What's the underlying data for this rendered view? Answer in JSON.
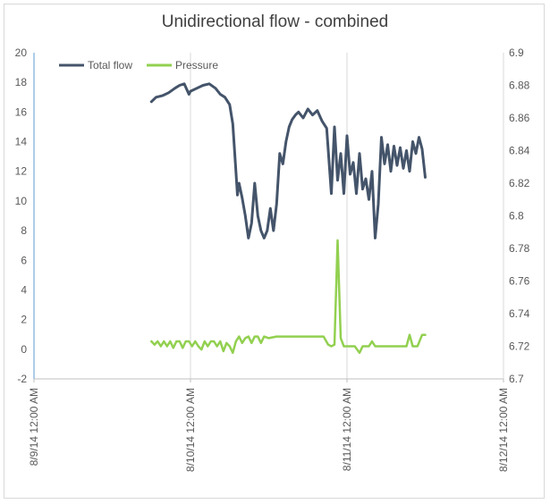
{
  "chart_data": {
    "type": "line",
    "title": "Unidirectional flow - combined",
    "legend_position": "top-left",
    "grid": {
      "vertical": true,
      "horizontal": false
    },
    "x_axis": {
      "ticks": [
        "8/9/14 12:00 AM",
        "8/10/14 12:00 AM",
        "8/11/14 12:00 AM",
        "8/12/14 12:00 AM"
      ],
      "range_days": [
        0,
        3
      ]
    },
    "y_axis_left": {
      "ylim": [
        -2,
        20
      ],
      "ticks": [
        "-2",
        "0",
        "2",
        "4",
        "6",
        "8",
        "10",
        "12",
        "14",
        "16",
        "18",
        "20"
      ]
    },
    "y_axis_right": {
      "ylim": [
        6.7,
        6.9
      ],
      "ticks": [
        "6.7",
        "6.72",
        "6.74",
        "6.76",
        "6.78",
        "6.8",
        "6.82",
        "6.84",
        "6.86",
        "6.88",
        "6.9"
      ]
    },
    "series": [
      {
        "name": "Total flow",
        "axis": "left",
        "color": "#44546a",
        "x": [
          0.75,
          0.78,
          0.82,
          0.86,
          0.9,
          0.93,
          0.96,
          0.99,
          1.0,
          1.04,
          1.08,
          1.12,
          1.16,
          1.19,
          1.22,
          1.25,
          1.27,
          1.29,
          1.3,
          1.31,
          1.33,
          1.35,
          1.37,
          1.39,
          1.41,
          1.43,
          1.45,
          1.47,
          1.49,
          1.51,
          1.53,
          1.55,
          1.57,
          1.59,
          1.61,
          1.63,
          1.65,
          1.67,
          1.69,
          1.72,
          1.75,
          1.78,
          1.81,
          1.84,
          1.87,
          1.9,
          1.92,
          1.94,
          1.96,
          1.98,
          2.0,
          2.02,
          2.04,
          2.06,
          2.08,
          2.1,
          2.12,
          2.14,
          2.16,
          2.18,
          2.2,
          2.22,
          2.24,
          2.26,
          2.28,
          2.3,
          2.32,
          2.34,
          2.36,
          2.38,
          2.4,
          2.42,
          2.44,
          2.46,
          2.48,
          2.5
        ],
        "values": [
          16.7,
          17.0,
          17.1,
          17.3,
          17.6,
          17.8,
          17.9,
          17.2,
          17.4,
          17.6,
          17.8,
          17.9,
          17.6,
          17.2,
          17.0,
          16.5,
          15.2,
          12.0,
          10.4,
          11.2,
          10.2,
          9.0,
          7.5,
          8.5,
          11.2,
          9.0,
          8.0,
          7.5,
          8.0,
          9.5,
          8.0,
          9.8,
          13.2,
          12.5,
          14.0,
          15.0,
          15.5,
          15.8,
          16.0,
          15.6,
          16.2,
          15.8,
          16.1,
          15.4,
          14.9,
          10.5,
          15.0,
          11.4,
          13.2,
          10.5,
          14.4,
          11.8,
          12.6,
          10.5,
          13.2,
          10.8,
          11.5,
          10.1,
          12.0,
          7.5,
          9.8,
          14.3,
          12.5,
          13.8,
          12.0,
          13.7,
          12.4,
          13.6,
          12.2,
          13.4,
          12.0,
          14.0,
          13.2,
          14.3,
          13.5,
          11.6
        ]
      },
      {
        "name": "Pressure",
        "axis": "right",
        "color": "#92d050",
        "x": [
          0.75,
          0.77,
          0.79,
          0.81,
          0.83,
          0.85,
          0.87,
          0.89,
          0.91,
          0.93,
          0.95,
          0.97,
          0.99,
          1.01,
          1.03,
          1.05,
          1.07,
          1.09,
          1.11,
          1.13,
          1.15,
          1.17,
          1.19,
          1.21,
          1.23,
          1.25,
          1.27,
          1.29,
          1.31,
          1.33,
          1.35,
          1.37,
          1.39,
          1.41,
          1.43,
          1.45,
          1.47,
          1.5,
          1.55,
          1.6,
          1.65,
          1.7,
          1.75,
          1.8,
          1.85,
          1.88,
          1.9,
          1.92,
          1.94,
          1.96,
          1.98,
          2.0,
          2.02,
          2.05,
          2.08,
          2.1,
          2.12,
          2.14,
          2.16,
          2.18,
          2.2,
          2.22,
          2.25,
          2.3,
          2.35,
          2.38,
          2.4,
          2.42,
          2.45,
          2.48,
          2.5
        ],
        "values": [
          6.723,
          6.721,
          6.723,
          6.72,
          6.723,
          6.72,
          6.723,
          6.719,
          6.723,
          6.723,
          6.719,
          6.723,
          6.723,
          6.72,
          6.723,
          6.72,
          6.718,
          6.723,
          6.72,
          6.723,
          6.723,
          6.72,
          6.723,
          6.717,
          6.722,
          6.72,
          6.716,
          6.723,
          6.726,
          6.722,
          6.725,
          6.726,
          6.722,
          6.726,
          6.726,
          6.722,
          6.726,
          6.725,
          6.726,
          6.726,
          6.726,
          6.726,
          6.726,
          6.726,
          6.726,
          6.721,
          6.72,
          6.721,
          6.785,
          6.725,
          6.72,
          6.72,
          6.72,
          6.72,
          6.716,
          6.72,
          6.72,
          6.72,
          6.723,
          6.72,
          6.72,
          6.72,
          6.72,
          6.72,
          6.72,
          6.72,
          6.727,
          6.72,
          6.72,
          6.727,
          6.727
        ]
      }
    ]
  }
}
